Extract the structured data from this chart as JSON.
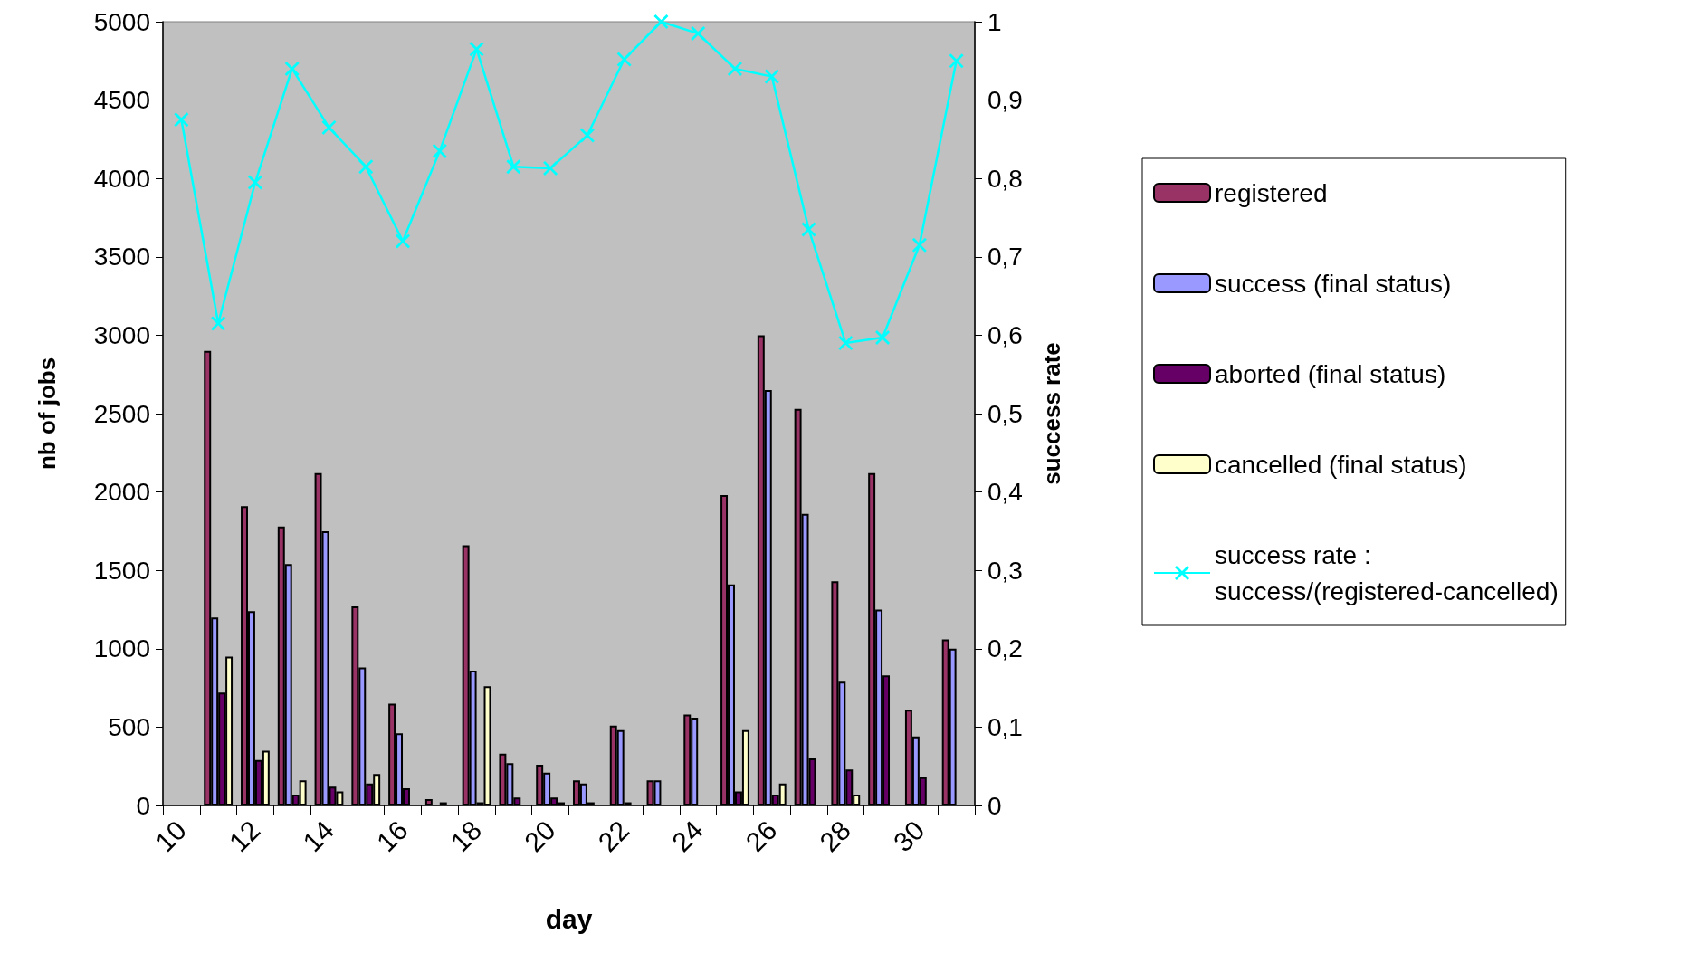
{
  "chart_data": {
    "type": "bar",
    "xlabel": "day",
    "ylabel": "nb of jobs",
    "y2label": "success rate",
    "categories": [
      "10",
      null,
      "12",
      null,
      "14",
      null,
      "16",
      null,
      "18",
      null,
      "20",
      null,
      "22",
      null,
      "24",
      null,
      "26",
      null,
      "28",
      null,
      "30",
      null
    ],
    "series": [
      {
        "name": "registered",
        "color": "#993366",
        "values": [
          null,
          2900,
          1910,
          1780,
          2120,
          1270,
          650,
          40,
          1660,
          330,
          260,
          160,
          510,
          160,
          580,
          1980,
          3000,
          2530,
          1430,
          2120,
          610,
          1060
        ]
      },
      {
        "name": "success (final status)",
        "color": "#9999ff",
        "values": [
          null,
          1200,
          1240,
          1540,
          1750,
          880,
          460,
          0,
          860,
          270,
          210,
          140,
          480,
          160,
          560,
          1410,
          2650,
          1860,
          790,
          1250,
          440,
          1000
        ]
      },
      {
        "name": "aborted (final status)",
        "color": "#660066",
        "values": [
          null,
          720,
          290,
          70,
          120,
          140,
          110,
          20,
          20,
          50,
          50,
          20,
          20,
          0,
          0,
          90,
          70,
          300,
          230,
          830,
          180,
          0
        ]
      },
      {
        "name": "cancelled (final status)",
        "color": "#ffffcc",
        "values": [
          null,
          950,
          350,
          160,
          90,
          200,
          0,
          0,
          760,
          0,
          20,
          0,
          0,
          0,
          0,
          480,
          140,
          0,
          70,
          0,
          0,
          0
        ]
      },
      {
        "name": "success rate :\nsuccess/(registered-cancelled)",
        "type": "line",
        "axis": "y2",
        "color": "#00ffff",
        "marker": "cross",
        "values": [
          0.875,
          0.615,
          0.795,
          0.94,
          0.865,
          0.815,
          0.72,
          0.835,
          0.965,
          0.815,
          0.813,
          0.855,
          0.952,
          1.0,
          0.985,
          0.94,
          0.93,
          0.735,
          0.59,
          0.597,
          0.715,
          0.95
        ]
      }
    ],
    "ylim": [
      0,
      5000
    ],
    "yticks": [
      0,
      500,
      1000,
      1500,
      2000,
      2500,
      3000,
      3500,
      4000,
      4500,
      5000
    ],
    "y2lim": [
      0,
      1
    ],
    "y2ticks": [
      0,
      {
        "value": 0.1,
        "label": "0,1"
      },
      {
        "value": 0.2,
        "label": "0,2"
      },
      {
        "value": 0.3,
        "label": "0,3"
      },
      {
        "value": 0.4,
        "label": "0,4"
      },
      {
        "value": 0.5,
        "label": "0,5"
      },
      {
        "value": 0.6,
        "label": "0,6"
      },
      {
        "value": 0.7,
        "label": "0,7"
      },
      {
        "value": 0.8,
        "label": "0,8"
      },
      {
        "value": 0.9,
        "label": "0,9"
      },
      1
    ],
    "grid": false,
    "legend": "right"
  }
}
